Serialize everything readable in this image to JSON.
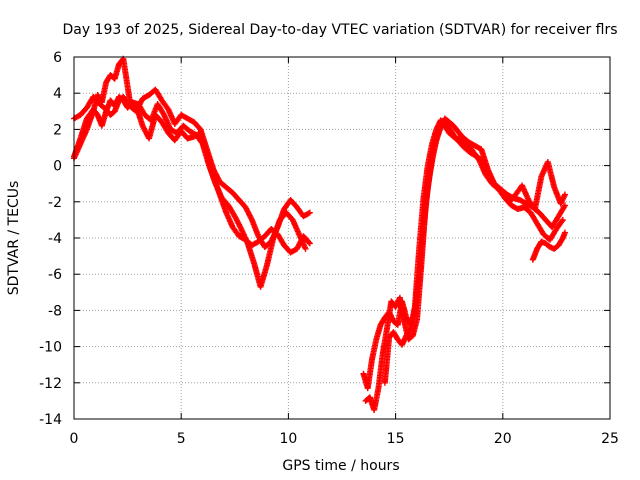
{
  "chart_data": {
    "type": "scatter",
    "title": "Day 193 of 2025, Sidereal Day-to-day VTEC variation (SDTVAR) for receiver flrs",
    "xlabel": "GPS time / hours",
    "ylabel": "SDTVAR / TECUs",
    "xlim": [
      0,
      25
    ],
    "ylim": [
      -14,
      6
    ],
    "xticks": [
      0,
      5,
      10,
      15,
      20,
      25
    ],
    "yticks": [
      -14,
      -12,
      -10,
      -8,
      -6,
      -4,
      -2,
      0,
      2,
      4,
      6
    ],
    "grid": true,
    "legend": "none",
    "marker": "+",
    "color": "#ff0000",
    "series": [
      {
        "x": [
          0.0,
          0.3,
          0.6,
          0.9,
          1.1,
          1.3,
          1.5,
          1.7,
          1.9,
          2.1,
          2.3,
          2.5,
          2.7,
          3.0,
          3.3,
          3.6,
          3.9,
          4.2,
          4.5,
          4.8,
          5.1,
          5.4,
          5.7,
          6.0,
          6.3,
          6.6,
          6.9,
          7.2,
          7.5,
          7.8,
          8.1,
          8.4,
          8.7,
          9.0,
          9.3,
          9.6,
          9.9,
          10.2,
          10.5,
          10.8
        ],
        "y": [
          0.5,
          1.5,
          2.6,
          3.1,
          2.8,
          2.2,
          3.0,
          3.6,
          3.3,
          3.8,
          3.6,
          3.2,
          3.5,
          3.4,
          2.8,
          2.5,
          3.4,
          2.8,
          2.0,
          1.8,
          2.2,
          1.9,
          1.7,
          1.2,
          0.0,
          -1.0,
          -1.8,
          -2.2,
          -2.8,
          -3.5,
          -4.3,
          -5.4,
          -6.7,
          -5.5,
          -4.0,
          -3.0,
          -2.6,
          -3.0,
          -3.8,
          -4.6
        ]
      },
      {
        "x": [
          0.0,
          0.3,
          0.6,
          0.9,
          1.2,
          1.5,
          1.7,
          1.9,
          2.1,
          2.3,
          2.6,
          2.9,
          3.2,
          3.5,
          3.8,
          4.1,
          4.4,
          4.7,
          5.0,
          5.3,
          5.6,
          5.9,
          6.2,
          6.5,
          6.8,
          7.1,
          7.4,
          7.7,
          8.0,
          8.3,
          8.6,
          8.9,
          9.2,
          9.5,
          9.8,
          10.1,
          10.4,
          10.7,
          11.0
        ],
        "y": [
          2.6,
          2.8,
          3.2,
          3.8,
          3.4,
          3.1,
          2.8,
          3.0,
          3.6,
          3.8,
          3.3,
          3.0,
          3.7,
          3.9,
          4.2,
          3.6,
          3.1,
          2.3,
          2.8,
          2.6,
          2.4,
          2.0,
          0.9,
          -0.2,
          -0.9,
          -1.2,
          -1.5,
          -1.9,
          -2.3,
          -3.0,
          -3.9,
          -4.5,
          -4.2,
          -3.4,
          -2.4,
          -1.9,
          -2.3,
          -2.8,
          -2.6
        ]
      },
      {
        "x": [
          0.0,
          0.3,
          0.6,
          0.9,
          1.1,
          1.3,
          1.5,
          1.7,
          1.9,
          2.1,
          2.3,
          2.6,
          2.9,
          3.2,
          3.5,
          3.8,
          4.1,
          4.4,
          4.7,
          5.0,
          5.3,
          5.6,
          5.9,
          6.2,
          6.5,
          6.8,
          7.1,
          7.4,
          7.7,
          8.0,
          8.3,
          8.6,
          8.9,
          9.2,
          9.5,
          9.8,
          10.1,
          10.4,
          10.7,
          11.0
        ],
        "y": [
          0.4,
          1.2,
          2.0,
          3.0,
          3.9,
          3.5,
          4.6,
          5.0,
          4.8,
          5.6,
          5.9,
          3.6,
          3.3,
          2.2,
          1.5,
          2.8,
          2.4,
          1.8,
          1.4,
          1.9,
          1.5,
          1.6,
          1.8,
          0.7,
          -0.6,
          -1.6,
          -2.6,
          -3.4,
          -3.9,
          -4.1,
          -4.4,
          -4.2,
          -3.9,
          -3.5,
          -3.8,
          -4.4,
          -4.8,
          -4.6,
          -3.9,
          -4.3
        ]
      },
      {
        "x": [
          13.5,
          13.7,
          13.9,
          14.1,
          14.3,
          14.5,
          14.7,
          14.9,
          15.1,
          15.3,
          15.5,
          15.7,
          15.9,
          16.1,
          16.3,
          16.5,
          16.7,
          16.9,
          17.1,
          17.3,
          17.5,
          17.7,
          17.9,
          18.1,
          18.4,
          18.7,
          19.0,
          19.3,
          19.6,
          19.9,
          20.2,
          20.5,
          20.8,
          21.1,
          21.4,
          21.7,
          22.0,
          22.3,
          22.6,
          22.9
        ],
        "y": [
          -11.5,
          -12.3,
          -10.7,
          -9.6,
          -8.8,
          -8.4,
          -8.1,
          -8.6,
          -8.8,
          -7.5,
          -8.4,
          -8.8,
          -8.0,
          -6.2,
          -3.6,
          -1.2,
          0.3,
          1.4,
          2.1,
          2.6,
          2.4,
          2.2,
          1.9,
          1.6,
          1.3,
          1.1,
          0.9,
          -0.2,
          -1.0,
          -1.3,
          -1.6,
          -1.8,
          -1.9,
          -2.1,
          -2.3,
          -2.6,
          -3.0,
          -3.4,
          -2.8,
          -2.2
        ]
      },
      {
        "x": [
          13.6,
          13.8,
          14.0,
          14.2,
          14.4,
          14.6,
          14.8,
          15.0,
          15.2,
          15.4,
          15.6,
          15.8,
          16.0,
          16.2,
          16.4,
          16.6,
          16.8,
          17.0,
          17.2,
          17.4,
          17.6,
          17.8,
          18.0,
          18.3,
          18.6,
          18.9,
          19.2,
          19.5,
          19.8,
          20.1,
          20.4,
          20.7,
          21.0,
          21.3,
          21.6,
          21.9,
          22.2,
          22.5,
          22.8
        ],
        "y": [
          -13.0,
          -12.8,
          -13.5,
          -12.3,
          -10.4,
          -9.0,
          -7.5,
          -7.8,
          -7.3,
          -8.6,
          -9.6,
          -9.4,
          -8.5,
          -5.5,
          -2.2,
          -0.4,
          0.9,
          1.9,
          2.4,
          2.2,
          1.9,
          1.5,
          1.5,
          1.2,
          0.8,
          0.3,
          -0.5,
          -1.0,
          -1.3,
          -1.8,
          -2.2,
          -2.4,
          -2.3,
          -2.6,
          -3.2,
          -3.8,
          -4.1,
          -3.5,
          -3.0
        ]
      },
      {
        "x": [
          14.5,
          14.7,
          14.9,
          15.1,
          15.3,
          15.5,
          15.7,
          15.9,
          16.1,
          16.3,
          16.5,
          16.7,
          16.9,
          17.1,
          17.3,
          17.5,
          17.7,
          17.9,
          18.2,
          18.5,
          18.8,
          19.1,
          19.4,
          19.7,
          20.0,
          20.3,
          20.6,
          20.9,
          21.2,
          21.5,
          21.8,
          22.1,
          22.4,
          22.7,
          22.9
        ],
        "y": [
          -12.0,
          -9.5,
          -9.2,
          -9.6,
          -9.9,
          -9.4,
          -9.0,
          -7.8,
          -4.6,
          -1.8,
          0.0,
          1.2,
          2.0,
          2.5,
          2.2,
          1.8,
          1.6,
          1.4,
          1.0,
          0.7,
          0.5,
          0.2,
          -0.6,
          -1.2,
          -1.5,
          -2.0,
          -1.6,
          -1.1,
          -1.9,
          -2.4,
          -0.6,
          0.2,
          -1.2,
          -2.1,
          -1.6
        ]
      },
      {
        "x": [
          21.4,
          21.6,
          21.8,
          22.0,
          22.2,
          22.4,
          22.6,
          22.8,
          22.9
        ],
        "y": [
          -5.2,
          -4.6,
          -4.2,
          -4.3,
          -4.5,
          -4.6,
          -4.4,
          -4.0,
          -3.7
        ]
      }
    ]
  }
}
